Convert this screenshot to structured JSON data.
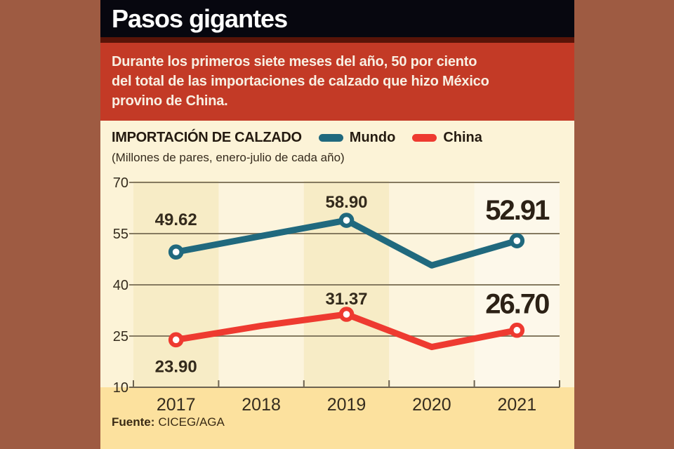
{
  "header": {
    "title": "Pasos gigantes"
  },
  "banner": {
    "text": "Durante los primeros siete meses del año, 50 por ciento\ndel total de las importaciones de calzado que hizo México\nprovino de China."
  },
  "chart": {
    "title": "IMPORTACIÓN DE CALZADO",
    "subtitle": "(Millones de pares, enero-julio de cada año)",
    "legend": [
      {
        "label": "Mundo",
        "color": "#20697e"
      },
      {
        "label": "China",
        "color": "#ee3a30"
      }
    ]
  },
  "chart_data": {
    "type": "line",
    "title": "IMPORTACIÓN DE CALZADO",
    "subtitle": "(Millones de pares, enero-julio de cada año)",
    "categories": [
      "2017",
      "2018",
      "2019",
      "2020",
      "2021"
    ],
    "series": [
      {
        "name": "Mundo",
        "color": "#20697e",
        "values": [
          49.62,
          54.3,
          58.9,
          45.7,
          52.91
        ],
        "labels": [
          "49.62",
          null,
          "58.90",
          null,
          "52.91"
        ],
        "estimated": [
          false,
          true,
          false,
          true,
          false
        ]
      },
      {
        "name": "China",
        "color": "#ee3a30",
        "values": [
          23.9,
          28.0,
          31.37,
          21.8,
          26.7
        ],
        "labels": [
          "23.90",
          null,
          "31.37",
          null,
          "26.70"
        ],
        "estimated": [
          false,
          true,
          false,
          true,
          false
        ]
      }
    ],
    "ylim": [
      10,
      70
    ],
    "yticks": [
      70,
      55,
      40,
      25,
      10
    ],
    "grid": "horizontal-only",
    "legend_position": "top-right",
    "emphasized_year": "2021"
  },
  "source": {
    "prefix": "Fuente:",
    "text": "CICEG/AGA"
  },
  "colors": {
    "background_brown": "#9e5b42",
    "title_bar_black": "#07070f",
    "banner_red": "#c33a26",
    "banner_border": "#591408",
    "panel_cream": "#fcf3d7",
    "band_yellow": "#fce19e",
    "gridline": "#857a60",
    "axis": "#6d6350",
    "accent_teal": "#20697e",
    "accent_red": "#ee3a30"
  }
}
